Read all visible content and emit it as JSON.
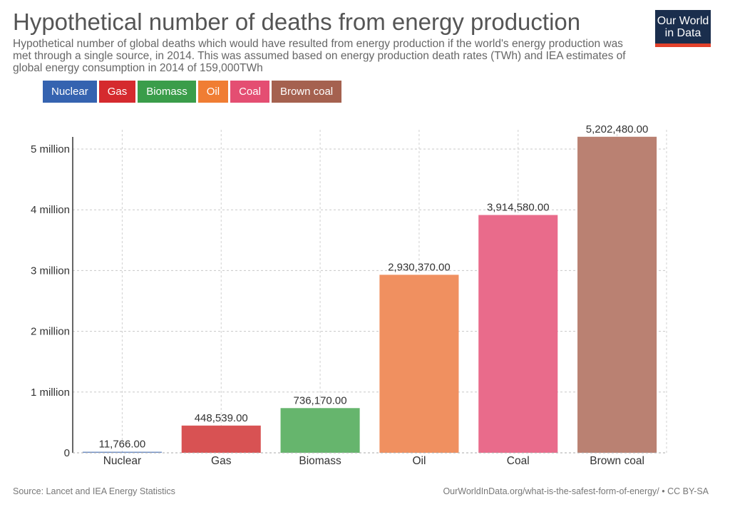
{
  "header": {
    "title": "Hypothetical number of deaths from energy production",
    "subtitle": "Hypothetical number of global deaths which would have resulted from energy production if the world's energy production was met through a single source, in 2014. This was assumed based on energy production death rates (TWh) and IEA estimates of global energy consumption in 2014 of 159,000TWh"
  },
  "logo": {
    "line1": "Our World",
    "line2": "in Data"
  },
  "legend": [
    {
      "label": "Nuclear",
      "color": "#3563b0"
    },
    {
      "label": "Gas",
      "color": "#d52a2e"
    },
    {
      "label": "Biomass",
      "color": "#3a9d4a"
    },
    {
      "label": "Oil",
      "color": "#f07d33"
    },
    {
      "label": "Coal",
      "color": "#e44e72"
    },
    {
      "label": "Brown coal",
      "color": "#a5614f"
    }
  ],
  "chart_data": {
    "type": "bar",
    "title": "Hypothetical number of deaths from energy production",
    "categories": [
      "Nuclear",
      "Gas",
      "Biomass",
      "Oil",
      "Coal",
      "Brown coal"
    ],
    "values": [
      11766,
      448539,
      736170,
      2930370,
      3914580,
      5202480
    ],
    "value_labels": [
      "11,766.00",
      "448,539.00",
      "736,170.00",
      "2,930,370.00",
      "3,914,580.00",
      "5,202,480.00"
    ],
    "colors": [
      "#6f8fc6",
      "#d85253",
      "#66b56d",
      "#f09060",
      "#e96b8b",
      "#ba8172"
    ],
    "yticks": [
      0,
      1000000,
      2000000,
      3000000,
      4000000,
      5000000
    ],
    "ytick_labels": [
      "0",
      "1 million",
      "2 million",
      "3 million",
      "4 million",
      "5 million"
    ],
    "ylim": [
      0,
      5200000
    ],
    "grid": true,
    "xlabel": "",
    "ylabel": ""
  },
  "footer": {
    "source": "Source: Lancet and IEA Energy Statistics",
    "url": "OurWorldInData.org/what-is-the-safest-form-of-energy/ • CC BY-SA"
  }
}
